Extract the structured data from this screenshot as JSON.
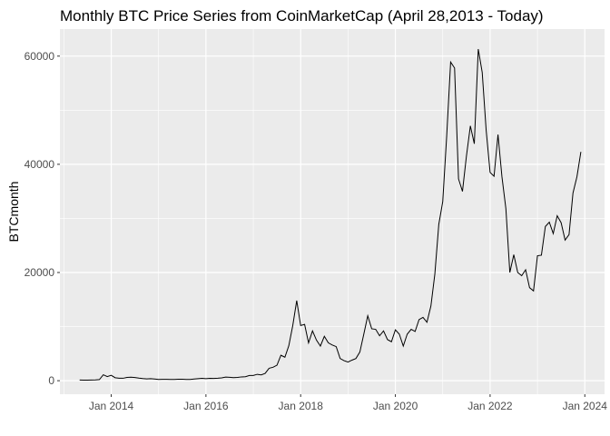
{
  "chart_data": {
    "type": "line",
    "title": "Monthly BTC Price Series from CoinMarketCap (April 28,2013 - Today)",
    "xlabel": "",
    "ylabel": "BTCmonth",
    "x_ticks": [
      "Jan 2014",
      "Jan 2016",
      "Jan 2018",
      "Jan 2020",
      "Jan 2022",
      "Jan 2024"
    ],
    "y_ticks": [
      "0",
      "20000",
      "40000",
      "60000"
    ],
    "ylim": [
      -2500,
      65000
    ],
    "xlim": [
      "2012-12",
      "2024-06"
    ],
    "grid": true,
    "legend": "none",
    "background_color": "#ebebeb",
    "line_color": "#000000",
    "series": [
      {
        "x": [
          "2013-05",
          "2013-06",
          "2013-07",
          "2013-08",
          "2013-09",
          "2013-10",
          "2013-11",
          "2013-12",
          "2014-01",
          "2014-02",
          "2014-03",
          "2014-04",
          "2014-05",
          "2014-06",
          "2014-07",
          "2014-08",
          "2014-09",
          "2014-10",
          "2014-11",
          "2014-12",
          "2015-01",
          "2015-02",
          "2015-03",
          "2015-04",
          "2015-05",
          "2015-06",
          "2015-07",
          "2015-08",
          "2015-09",
          "2015-10",
          "2015-11",
          "2015-12",
          "2016-01",
          "2016-02",
          "2016-03",
          "2016-04",
          "2016-05",
          "2016-06",
          "2016-07",
          "2016-08",
          "2016-09",
          "2016-10",
          "2016-11",
          "2016-12",
          "2017-01",
          "2017-02",
          "2017-03",
          "2017-04",
          "2017-05",
          "2017-06",
          "2017-07",
          "2017-08",
          "2017-09",
          "2017-10",
          "2017-11",
          "2017-12",
          "2018-01",
          "2018-02",
          "2018-03",
          "2018-04",
          "2018-05",
          "2018-06",
          "2018-07",
          "2018-08",
          "2018-09",
          "2018-10",
          "2018-11",
          "2018-12",
          "2019-01",
          "2019-02",
          "2019-03",
          "2019-04",
          "2019-05",
          "2019-06",
          "2019-07",
          "2019-08",
          "2019-09",
          "2019-10",
          "2019-11",
          "2019-12",
          "2020-01",
          "2020-02",
          "2020-03",
          "2020-04",
          "2020-05",
          "2020-06",
          "2020-07",
          "2020-08",
          "2020-09",
          "2020-10",
          "2020-11",
          "2020-12",
          "2021-01",
          "2021-02",
          "2021-03",
          "2021-04",
          "2021-05",
          "2021-06",
          "2021-07",
          "2021-08",
          "2021-09",
          "2021-10",
          "2021-11",
          "2021-12",
          "2022-01",
          "2022-02",
          "2022-03",
          "2022-04",
          "2022-05",
          "2022-06",
          "2022-07",
          "2022-08",
          "2022-09",
          "2022-10",
          "2022-11",
          "2022-12",
          "2023-01",
          "2023-02",
          "2023-03",
          "2023-04",
          "2023-05",
          "2023-06",
          "2023-07",
          "2023-08",
          "2023-09",
          "2023-10",
          "2023-11",
          "2023-12"
        ],
        "values": [
          130,
          100,
          95,
          130,
          140,
          200,
          1100,
          760,
          1000,
          550,
          450,
          450,
          600,
          640,
          590,
          480,
          390,
          340,
          370,
          320,
          220,
          250,
          250,
          235,
          230,
          260,
          280,
          230,
          235,
          310,
          380,
          430,
          370,
          435,
          415,
          450,
          530,
          670,
          625,
          575,
          610,
          700,
          740,
          960,
          970,
          1180,
          1070,
          1350,
          2300,
          2480,
          2870,
          4700,
          4340,
          6470,
          10200,
          14800,
          10200,
          10400,
          7000,
          9200,
          7500,
          6400,
          8200,
          7000,
          6600,
          6300,
          4100,
          3700,
          3450,
          3800,
          4100,
          5300,
          8600,
          12000,
          9600,
          9500,
          8300,
          9200,
          7600,
          7200,
          9400,
          8600,
          6400,
          8600,
          9500,
          9100,
          11300,
          11700,
          10800,
          13800,
          19700,
          28900,
          33100,
          45200,
          58900,
          57800,
          37300,
          35000,
          41500,
          47100,
          43800,
          61300,
          57000,
          46300,
          38500,
          37800,
          45500,
          37700,
          31800,
          20000,
          23300,
          20000,
          19400,
          20500,
          17200,
          16600,
          23100,
          23200,
          28500,
          29300,
          27200,
          30500,
          29200,
          26000,
          27000,
          34700,
          37700,
          42300
        ]
      }
    ]
  }
}
